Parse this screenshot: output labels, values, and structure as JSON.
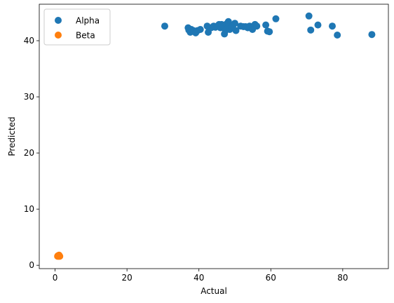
{
  "chart_data": {
    "type": "scatter",
    "title": "",
    "xlabel": "Actual",
    "ylabel": "Predicted",
    "xlim": [
      -4.4,
      92.7
    ],
    "ylim": [
      -0.6,
      46.5
    ],
    "xticks": [
      0,
      20,
      40,
      60,
      80
    ],
    "yticks": [
      0,
      10,
      20,
      30,
      40
    ],
    "grid": false,
    "legend_position": "top-left",
    "series": [
      {
        "name": "Alpha",
        "color": "#1f77b4",
        "points": [
          [
            30.5,
            42.6
          ],
          [
            37.0,
            42.3
          ],
          [
            37.2,
            41.9
          ],
          [
            37.6,
            41.5
          ],
          [
            37.9,
            42.0
          ],
          [
            38.5,
            41.8
          ],
          [
            39.1,
            41.4
          ],
          [
            39.6,
            41.8
          ],
          [
            40.4,
            42.0
          ],
          [
            42.3,
            42.6
          ],
          [
            42.6,
            41.5
          ],
          [
            43.4,
            42.3
          ],
          [
            44.1,
            42.6
          ],
          [
            44.6,
            42.4
          ],
          [
            45.1,
            42.6
          ],
          [
            45.6,
            42.9
          ],
          [
            46.0,
            42.3
          ],
          [
            46.3,
            42.9
          ],
          [
            46.8,
            42.5
          ],
          [
            47.1,
            41.2
          ],
          [
            47.4,
            41.8
          ],
          [
            47.7,
            43.0
          ],
          [
            47.9,
            42.2
          ],
          [
            48.2,
            43.4
          ],
          [
            48.6,
            42.0
          ],
          [
            49.0,
            42.5
          ],
          [
            49.4,
            42.6
          ],
          [
            50.0,
            43.1
          ],
          [
            50.3,
            41.8
          ],
          [
            51.6,
            42.6
          ],
          [
            52.4,
            42.5
          ],
          [
            53.0,
            42.5
          ],
          [
            53.6,
            42.3
          ],
          [
            54.1,
            42.6
          ],
          [
            54.9,
            42.0
          ],
          [
            55.6,
            42.9
          ],
          [
            56.1,
            42.6
          ],
          [
            58.6,
            42.8
          ],
          [
            59.1,
            41.7
          ],
          [
            59.6,
            41.6
          ],
          [
            61.4,
            43.9
          ],
          [
            70.6,
            44.4
          ],
          [
            71.1,
            41.9
          ],
          [
            73.1,
            42.8
          ],
          [
            77.1,
            42.6
          ],
          [
            78.5,
            41.0
          ],
          [
            88.1,
            41.1
          ]
        ]
      },
      {
        "name": "Beta",
        "color": "#ff7f0e",
        "points": [
          [
            0.7,
            1.6
          ],
          [
            0.9,
            1.7
          ],
          [
            1.0,
            1.6
          ],
          [
            1.1,
            1.8
          ],
          [
            1.3,
            1.6
          ],
          [
            0.8,
            1.7
          ]
        ]
      }
    ]
  }
}
